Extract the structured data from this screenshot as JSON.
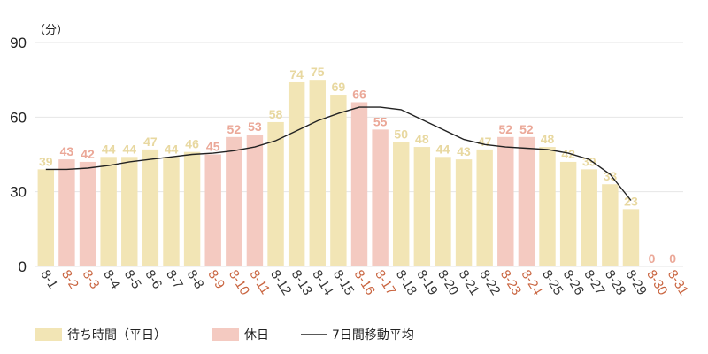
{
  "chart_data": {
    "type": "bar",
    "ylabel_unit": "（分）",
    "ylim": [
      0,
      90
    ],
    "yticks": [
      0,
      30,
      60,
      90
    ],
    "grid": true,
    "legend_placement": "bottom-left",
    "categories": [
      "8-1",
      "8-2",
      "8-3",
      "8-4",
      "8-5",
      "8-6",
      "8-7",
      "8-8",
      "8-9",
      "8-10",
      "8-11",
      "8-12",
      "8-13",
      "8-14",
      "8-15",
      "8-16",
      "8-17",
      "8-18",
      "8-19",
      "8-20",
      "8-21",
      "8-22",
      "8-23",
      "8-24",
      "8-25",
      "8-26",
      "8-27",
      "8-28",
      "8-29",
      "8-30",
      "8-31"
    ],
    "values": [
      39,
      43,
      42,
      44,
      44,
      47,
      44,
      46,
      45,
      52,
      53,
      58,
      74,
      75,
      69,
      66,
      55,
      50,
      48,
      44,
      43,
      47,
      52,
      52,
      48,
      42,
      39,
      33,
      23,
      0,
      0
    ],
    "day_type": [
      "weekday",
      "holiday",
      "holiday",
      "weekday",
      "weekday",
      "weekday",
      "weekday",
      "weekday",
      "holiday",
      "holiday",
      "holiday",
      "weekday",
      "weekday",
      "weekday",
      "weekday",
      "holiday",
      "holiday",
      "weekday",
      "weekday",
      "weekday",
      "weekday",
      "weekday",
      "holiday",
      "holiday",
      "weekday",
      "weekday",
      "weekday",
      "weekday",
      "weekday",
      "holiday",
      "holiday"
    ],
    "moving_average_7d": [
      39,
      39,
      39.5,
      40.5,
      42,
      43,
      44,
      45,
      45.5,
      46.5,
      48,
      50.5,
      54.5,
      58.5,
      61.5,
      64,
      64,
      63,
      59,
      55,
      51,
      49,
      48,
      47.5,
      47,
      45.5,
      43,
      37,
      26.5,
      null,
      null
    ],
    "legend": [
      {
        "key": "weekday",
        "label": "待ち時間（平日）"
      },
      {
        "key": "holiday",
        "label": "休日"
      },
      {
        "key": "ma",
        "label": "7日間移動平均"
      }
    ]
  },
  "colors": {
    "weekday_bar": "#f2e5b5",
    "holiday_bar": "#f4cac1",
    "weekday_text": "#e8d8a0",
    "holiday_text": "#eba898",
    "weekday_axis_text": "#333333",
    "holiday_axis_text": "#c9643f",
    "grid": "#e6e6e6",
    "ma_line": "#222222"
  }
}
